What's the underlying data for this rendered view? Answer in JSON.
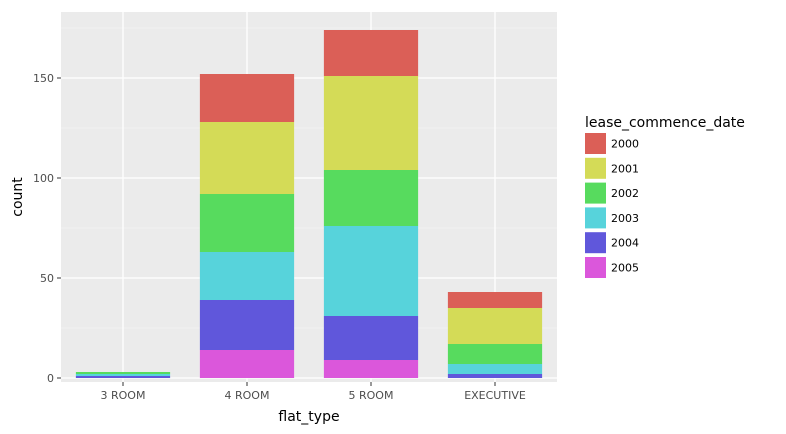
{
  "chart_data": {
    "type": "bar",
    "stacked": true,
    "title": "",
    "xlabel": "flat_type",
    "ylabel": "count",
    "categories": [
      "3 ROOM",
      "4 ROOM",
      "5 ROOM",
      "EXECUTIVE"
    ],
    "yticks": [
      0,
      50,
      100,
      150
    ],
    "ylim": [
      -2,
      183
    ],
    "grid": true,
    "legend_title": "lease_commence_date",
    "legend_position": "right",
    "series": [
      {
        "name": "2005",
        "color": "#DB57DB",
        "values": [
          0,
          14,
          9,
          0
        ]
      },
      {
        "name": "2004",
        "color": "#6057DB",
        "values": [
          1,
          25,
          22,
          2
        ]
      },
      {
        "name": "2003",
        "color": "#57D3DB",
        "values": [
          1,
          24,
          45,
          5
        ]
      },
      {
        "name": "2002",
        "color": "#57DB5E",
        "values": [
          1,
          29,
          28,
          10
        ]
      },
      {
        "name": "2001",
        "color": "#D4DB57",
        "values": [
          0,
          36,
          47,
          18
        ]
      },
      {
        "name": "2000",
        "color": "#DB5F57",
        "values": [
          0,
          24,
          23,
          8
        ]
      }
    ],
    "legend_order": [
      "2000",
      "2001",
      "2002",
      "2003",
      "2004",
      "2005"
    ]
  }
}
